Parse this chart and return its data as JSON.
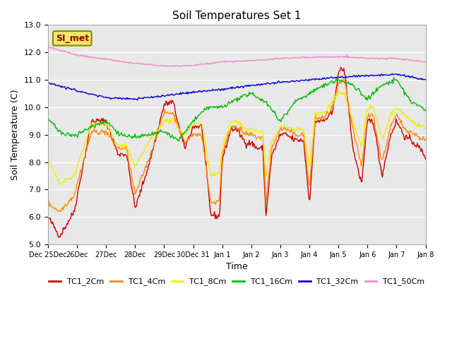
{
  "title": "Soil Temperatures Set 1",
  "xlabel": "Time",
  "ylabel": "Soil Temperature (C)",
  "ylim": [
    5.0,
    13.0
  ],
  "yticks": [
    5.0,
    6.0,
    7.0,
    8.0,
    9.0,
    10.0,
    11.0,
    12.0,
    13.0
  ],
  "plot_bg_color": "#e8e8e8",
  "annotation_text": "SI_met",
  "annotation_bg": "#f0e868",
  "annotation_border": "#888800",
  "series": [
    {
      "label": "TC1_2Cm",
      "color": "#cc0000"
    },
    {
      "label": "TC1_4Cm",
      "color": "#ff8800"
    },
    {
      "label": "TC1_8Cm",
      "color": "#eeee00"
    },
    {
      "label": "TC1_16Cm",
      "color": "#00bb00"
    },
    {
      "label": "TC1_32Cm",
      "color": "#0000cc"
    },
    {
      "label": "TC1_50Cm",
      "color": "#ee88cc"
    }
  ],
  "xtick_labels": [
    "Dec 25Dec",
    "26Dec",
    "27Dec",
    "28Dec",
    "29Dec",
    "30Dec 31",
    "Jan 1",
    "Jan 2",
    "Jan 3",
    "Jan 4",
    "Jan 5",
    "Jan 6",
    "Jan 7",
    "Jan 8"
  ],
  "xtick_positions": [
    0,
    1,
    2,
    3,
    4,
    5,
    6,
    7,
    8,
    9,
    10,
    11,
    12,
    13
  ]
}
